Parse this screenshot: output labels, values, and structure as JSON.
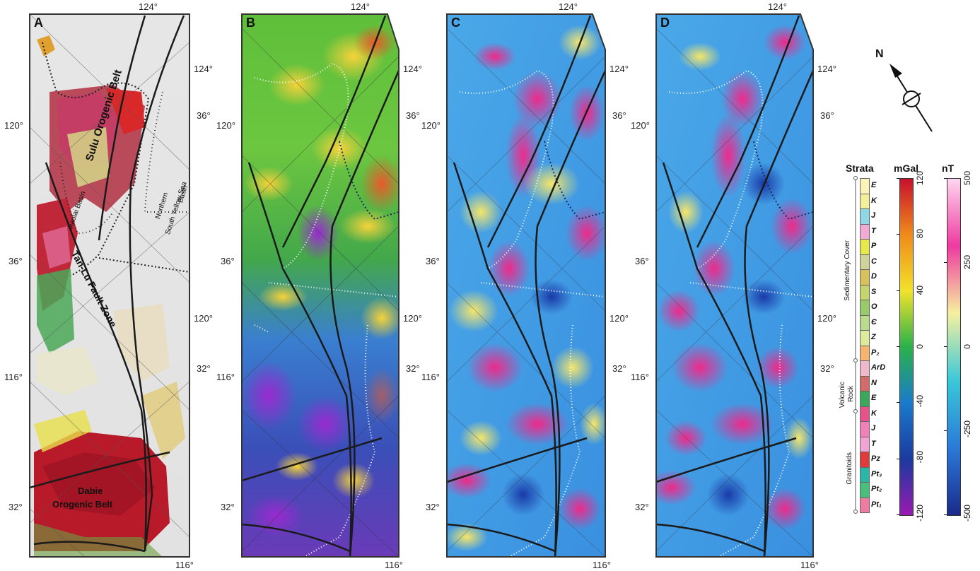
{
  "panels": [
    {
      "letter": "A"
    },
    {
      "letter": "B"
    },
    {
      "letter": "C"
    },
    {
      "letter": "D"
    }
  ],
  "coords": {
    "top": "124°",
    "bottom": "116°",
    "left_120": "120°",
    "left_36": "36°",
    "left_116": "116°",
    "left_32": "32°",
    "right_124": "124°",
    "right_36": "36°",
    "right_120": "120°",
    "right_32": "32°"
  },
  "map_labels": {
    "sulu": "Sulu Orogenic Belt",
    "tanlu": "Tan-Lu Fault Zone",
    "jiaolai": "Jiaolai Basin",
    "yellow_sea_1": "Northern",
    "yellow_sea_2": "South Yellow Sea",
    "yellow_sea_3": "Basin",
    "dabie_1": "Dabie",
    "dabie_2": "Orogenic Belt"
  },
  "north_arrow": {
    "label": "N"
  },
  "legend": {
    "strata_title": "Strata",
    "mgal_title": "mGal",
    "nt_title": "nT",
    "groups": {
      "sedimentary": "Sedimentary Cover",
      "volcanic_1": "Volcanic",
      "volcanic_2": "Rock",
      "granitoids": "Granitoids"
    },
    "strata": [
      {
        "label": "E",
        "color": "#fbf3b8"
      },
      {
        "label": "K",
        "color": "#f4f09a"
      },
      {
        "label": "J",
        "color": "#8fd6e6"
      },
      {
        "label": "T",
        "color": "#f3a9d6"
      },
      {
        "label": "P",
        "color": "#e8e84a"
      },
      {
        "label": "C",
        "color": "#cfd39a"
      },
      {
        "label": "D",
        "color": "#d9c25a"
      },
      {
        "label": "S",
        "color": "#c6d46c"
      },
      {
        "label": "O",
        "color": "#9acb6a"
      },
      {
        "label": "Є",
        "color": "#b8dc8c"
      },
      {
        "label": "Z",
        "color": "#dcec9a"
      },
      {
        "label": "P₂",
        "color": "#f6b46c"
      },
      {
        "label": "ArD",
        "color": "#f0b8cc"
      },
      {
        "label": "N",
        "color": "#d46a6a"
      },
      {
        "label": "E",
        "color": "#3aa85a"
      },
      {
        "label": "K",
        "color": "#e8528a"
      },
      {
        "label": "J",
        "color": "#f27fb8"
      },
      {
        "label": "T",
        "color": "#f5a3d6"
      },
      {
        "label": "Pz",
        "color": "#e03a3a"
      },
      {
        "label": "Pt₃",
        "color": "#29b8a8"
      },
      {
        "label": "Pt₂",
        "color": "#46c07a"
      },
      {
        "label": "Pt₁",
        "color": "#f07aa0"
      }
    ],
    "mgal_ticks": [
      "120",
      "80",
      "40",
      "0",
      "-40",
      "-80",
      "-120"
    ],
    "nt_ticks": [
      "500",
      "250",
      "0",
      "-250",
      "-500"
    ],
    "mgal_colors": [
      "#c8102e",
      "#f08a1a",
      "#f2e22a",
      "#29b24a",
      "#1a7acc",
      "#1a3aa0",
      "#9a1ab0"
    ],
    "nt_colors": [
      "#ffd6f0",
      "#ee3aa0",
      "#f6f0a0",
      "#3ac8d8",
      "#2a7ad8",
      "#1a2a8a"
    ]
  }
}
